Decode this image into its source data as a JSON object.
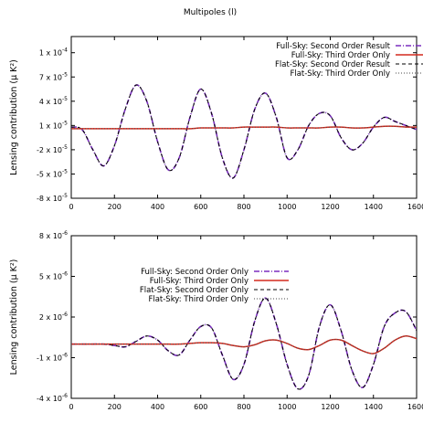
{
  "figure_title": "Multipoles (l)",
  "chart_data": [
    {
      "type": "line",
      "ylabel": "Lensing contribution (μ K²)",
      "xlim": [
        0,
        1600
      ],
      "ylim": [
        -8e-05,
        0.00012
      ],
      "x_ticks": [
        "0",
        "200",
        "400",
        "600",
        "800",
        "1000",
        "1200",
        "1400",
        "1600"
      ],
      "y_ticks": [
        {
          "value": 0.0001,
          "mant": "1 x 10",
          "exp": "-4"
        },
        {
          "value": 7e-05,
          "mant": "7 x 10",
          "exp": "-5"
        },
        {
          "value": 4e-05,
          "mant": "4 x 10",
          "exp": "-5"
        },
        {
          "value": 1e-05,
          "mant": "1 x 10",
          "exp": "-5"
        },
        {
          "value": -2e-05,
          "mant": "-2 x 10",
          "exp": "-5"
        },
        {
          "value": -5e-05,
          "mant": "-5 x 10",
          "exp": "-5"
        },
        {
          "value": -8e-05,
          "mant": "-8 x 10",
          "exp": "-5"
        }
      ],
      "legend_position": "top-right",
      "x": [
        0,
        50,
        100,
        150,
        200,
        250,
        300,
        350,
        400,
        450,
        500,
        550,
        600,
        650,
        700,
        750,
        800,
        850,
        900,
        950,
        1000,
        1050,
        1100,
        1150,
        1200,
        1250,
        1300,
        1350,
        1400,
        1450,
        1500,
        1550,
        1600
      ],
      "series": [
        {
          "name": "Full-Sky: Second Order Result",
          "color": "#7b2fbf",
          "dash": "6,2,1,2",
          "width": 1.6,
          "values": [
            8e-06,
            5e-06,
            -2e-05,
            -4e-05,
            -1.5e-05,
            3e-05,
            6e-05,
            4e-05,
            -1e-05,
            -4.5e-05,
            -3e-05,
            2e-05,
            5.5e-05,
            2.5e-05,
            -3e-05,
            -5.5e-05,
            -2e-05,
            3e-05,
            5e-05,
            2e-05,
            -3e-05,
            -2e-05,
            1e-05,
            2.5e-05,
            2.2e-05,
            -5e-06,
            -2e-05,
            -1.2e-05,
            8e-06,
            2e-05,
            1.5e-05,
            1e-05,
            5e-06
          ]
        },
        {
          "name": "Full-Sky: Third Order Only",
          "color": "#d42a1e",
          "dash": "",
          "width": 1.5,
          "values": [
            6e-06,
            6e-06,
            6e-06,
            6e-06,
            6e-06,
            6e-06,
            6e-06,
            6e-06,
            6e-06,
            6e-06,
            6e-06,
            6e-06,
            7e-06,
            7e-06,
            7e-06,
            7e-06,
            8e-06,
            8e-06,
            8e-06,
            8e-06,
            7e-06,
            7e-06,
            7e-06,
            7e-06,
            8e-06,
            8e-06,
            7e-06,
            7e-06,
            8e-06,
            9e-06,
            9e-06,
            8e-06,
            8e-06
          ]
        },
        {
          "name": "Flat-Sky: Second Order Result",
          "color": "#000000",
          "dash": "4,3",
          "width": 1.0,
          "same_as": 0
        },
        {
          "name": "Flat-Sky: Third Order Only",
          "color": "#4a4a4a",
          "dash": "1,2",
          "width": 1.0,
          "same_as": 1
        }
      ]
    },
    {
      "type": "line",
      "ylabel": "Lensing contribution (μ K²)",
      "xlim": [
        0,
        1600
      ],
      "ylim": [
        -4e-06,
        8e-06
      ],
      "x_ticks": [
        "0",
        "200",
        "400",
        "600",
        "800",
        "1000",
        "1200",
        "1400",
        "1600"
      ],
      "y_ticks": [
        {
          "value": 8e-06,
          "mant": "8 x 10",
          "exp": "-6"
        },
        {
          "value": 5e-06,
          "mant": "5 x 10",
          "exp": "-6"
        },
        {
          "value": 2e-06,
          "mant": "2 x 10",
          "exp": "-6"
        },
        {
          "value": -1e-06,
          "mant": "-1 x 10",
          "exp": "-6"
        },
        {
          "value": -4e-06,
          "mant": "-4 x 10",
          "exp": "-6"
        }
      ],
      "legend_position": "top-left",
      "x": [
        0,
        50,
        100,
        150,
        200,
        250,
        300,
        350,
        400,
        450,
        500,
        550,
        600,
        650,
        700,
        750,
        800,
        850,
        900,
        950,
        1000,
        1050,
        1100,
        1150,
        1200,
        1250,
        1300,
        1350,
        1400,
        1450,
        1500,
        1550,
        1600
      ],
      "series": [
        {
          "name": "Full-Sky: Second Order Only",
          "color": "#7b2fbf",
          "dash": "6,2,1,2",
          "width": 1.6,
          "values": [
            0,
            0,
            0,
            0,
            -1e-07,
            -2e-07,
            2e-07,
            6e-07,
            3e-07,
            -5e-07,
            -8e-07,
            3e-07,
            1.3e-06,
            1.2e-06,
            -8e-07,
            -2.6e-06,
            -1.5e-06,
            1.7e-06,
            3.4e-06,
            1.5e-06,
            -1.5e-06,
            -3.3e-06,
            -2.3e-06,
            1.3e-06,
            2.9e-06,
            1e-06,
            -1.9e-06,
            -3.2e-06,
            -1.5e-06,
            1.3e-06,
            2.3e-06,
            2.4e-06,
            1e-06
          ]
        },
        {
          "name": "Full-Sky: Third Order Only",
          "color": "#d42a1e",
          "dash": "",
          "width": 1.5,
          "values": [
            0,
            0,
            0,
            0,
            0,
            0,
            0,
            0,
            0,
            0,
            0,
            5e-08,
            1e-07,
            1e-07,
            5e-08,
            -1e-07,
            -2e-07,
            -5e-08,
            2.5e-07,
            3e-07,
            5e-08,
            -3e-07,
            -4e-07,
            -1e-07,
            3e-07,
            3e-07,
            -1e-07,
            -5e-07,
            -7e-07,
            -3e-07,
            3e-07,
            6e-07,
            4e-07
          ]
        },
        {
          "name": "Flat-Sky: Second Order Only",
          "color": "#000000",
          "dash": "4,3",
          "width": 1.0,
          "same_as": 0
        },
        {
          "name": "Flat-Sky: Third Order Only",
          "color": "#4a4a4a",
          "dash": "1,2",
          "width": 1.0,
          "same_as": 1
        }
      ]
    }
  ]
}
